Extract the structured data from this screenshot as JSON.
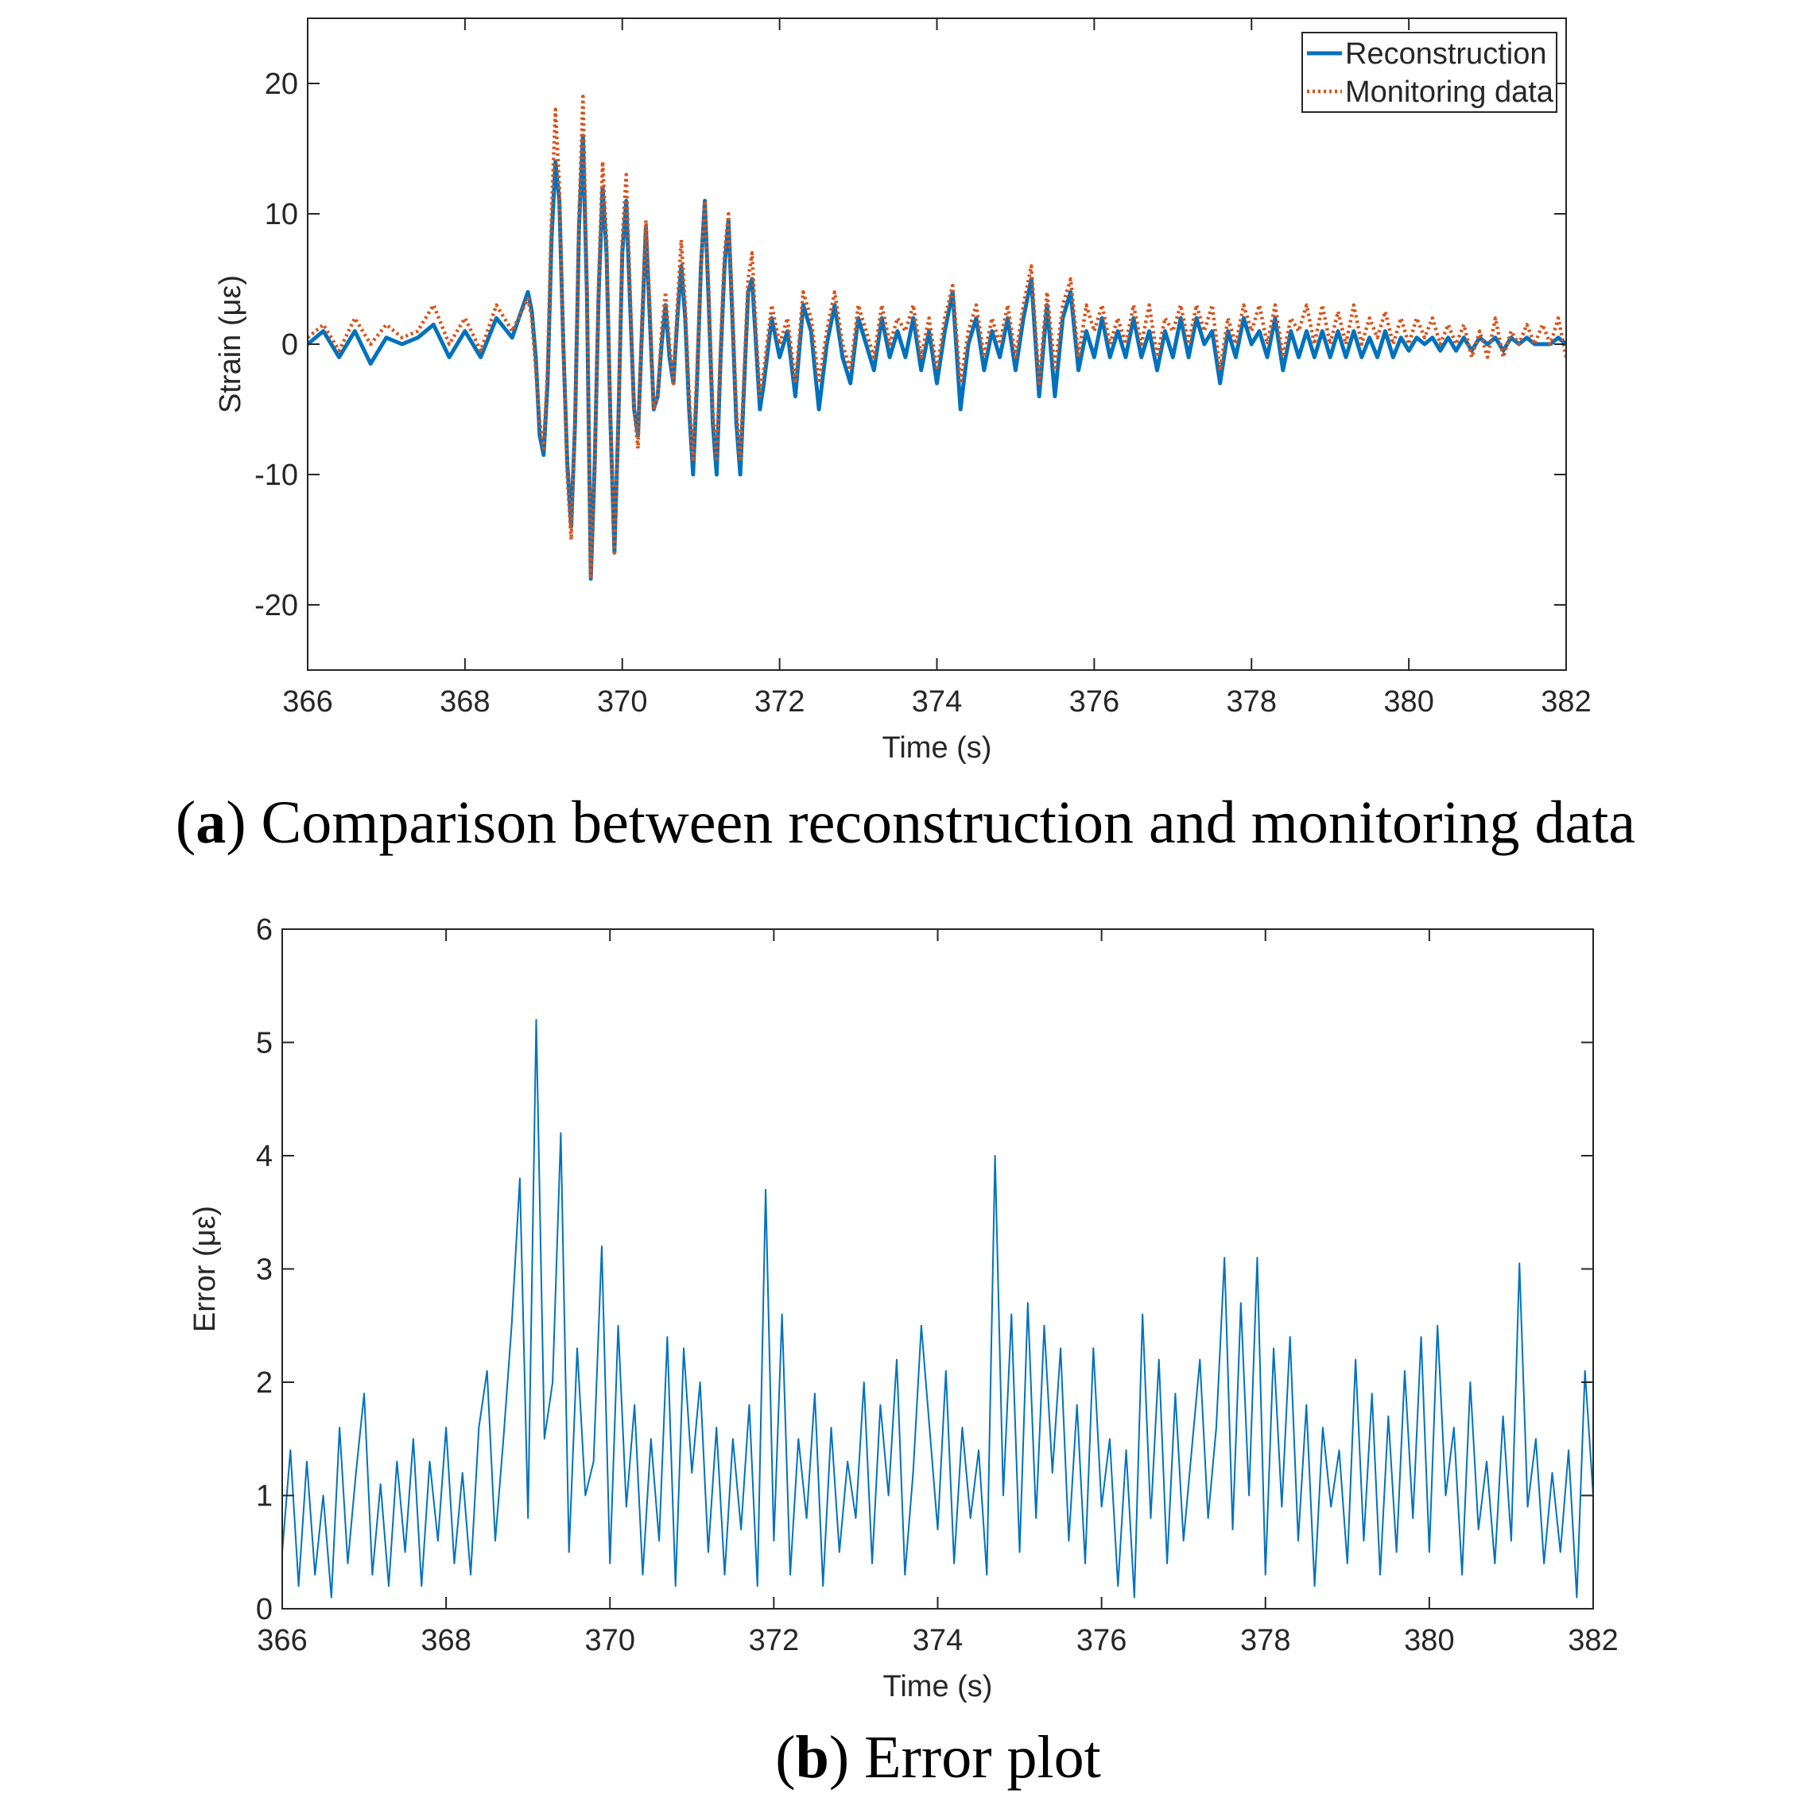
{
  "chart_data": [
    {
      "type": "line",
      "caption_label": "a",
      "caption": "Comparison between reconstruction and monitoring data",
      "xlabel": "Time (s)",
      "ylabel": "Strain (με)",
      "xlim": [
        366,
        382
      ],
      "xticks": [
        366,
        368,
        370,
        372,
        374,
        376,
        378,
        380,
        382
      ],
      "ylim": [
        -25,
        25
      ],
      "yticks": [
        -20,
        -10,
        0,
        10,
        20
      ],
      "legend": "upper right",
      "x": [
        366.0,
        366.2,
        366.4,
        366.6,
        366.8,
        367.0,
        367.2,
        367.4,
        367.6,
        367.8,
        368.0,
        368.2,
        368.4,
        368.6,
        368.8,
        368.85,
        368.9,
        368.95,
        369.0,
        369.05,
        369.1,
        369.15,
        369.2,
        369.25,
        369.3,
        369.35,
        369.4,
        369.45,
        369.5,
        369.55,
        369.6,
        369.65,
        369.7,
        369.75,
        369.8,
        369.85,
        369.9,
        369.95,
        370.0,
        370.05,
        370.1,
        370.15,
        370.2,
        370.25,
        370.3,
        370.35,
        370.4,
        370.45,
        370.5,
        370.55,
        370.6,
        370.65,
        370.7,
        370.75,
        370.8,
        370.85,
        370.9,
        370.95,
        371.0,
        371.05,
        371.1,
        371.15,
        371.2,
        371.25,
        371.3,
        371.35,
        371.4,
        371.45,
        371.5,
        371.55,
        371.6,
        371.65,
        371.7,
        371.75,
        371.8,
        371.9,
        372.0,
        372.1,
        372.2,
        372.3,
        372.4,
        372.5,
        372.6,
        372.7,
        372.8,
        372.9,
        373.0,
        373.1,
        373.2,
        373.3,
        373.4,
        373.5,
        373.6,
        373.7,
        373.8,
        373.9,
        374.0,
        374.1,
        374.2,
        374.3,
        374.4,
        374.5,
        374.6,
        374.7,
        374.8,
        374.9,
        375.0,
        375.1,
        375.2,
        375.3,
        375.4,
        375.5,
        375.6,
        375.7,
        375.8,
        375.9,
        376.0,
        376.1,
        376.2,
        376.3,
        376.4,
        376.5,
        376.6,
        376.7,
        376.8,
        376.9,
        377.0,
        377.1,
        377.2,
        377.3,
        377.4,
        377.5,
        377.6,
        377.7,
        377.8,
        377.9,
        378.0,
        378.1,
        378.2,
        378.3,
        378.4,
        378.5,
        378.6,
        378.7,
        378.8,
        378.9,
        379.0,
        379.1,
        379.2,
        379.3,
        379.4,
        379.5,
        379.6,
        379.7,
        379.8,
        379.9,
        380.0,
        380.1,
        380.2,
        380.3,
        380.4,
        380.5,
        380.6,
        380.7,
        380.8,
        380.9,
        381.0,
        381.1,
        381.2,
        381.3,
        381.4,
        381.5,
        381.6,
        381.7,
        381.8,
        381.9,
        382.0
      ],
      "series": [
        {
          "name": "Reconstruction",
          "color": "#0072bd",
          "style": "solid",
          "values": [
            0,
            1,
            -1,
            1,
            -1.5,
            0.5,
            0,
            0.5,
            1.5,
            -1,
            1,
            -1,
            2,
            0.5,
            4,
            2.5,
            -1,
            -7,
            -8.5,
            -3,
            8,
            14,
            11,
            0,
            -9,
            -14,
            -6,
            9,
            16,
            4,
            -18,
            -9,
            4,
            12,
            7,
            -6,
            -16,
            -6,
            7,
            11,
            3,
            -5,
            -7,
            1,
            9,
            2,
            -5,
            -4,
            0,
            3,
            -1,
            -3,
            2,
            6,
            2,
            -5,
            -10,
            -3,
            6,
            11,
            3,
            -6,
            -10,
            -1,
            6,
            9.5,
            2,
            -6,
            -10,
            -3,
            4,
            5,
            0,
            -5,
            -3,
            2,
            -1,
            1,
            -4,
            3,
            1,
            -5,
            0,
            3,
            -1,
            -3,
            2,
            0,
            -2,
            2,
            -1,
            1,
            -1,
            2,
            -2,
            1,
            -3,
            1,
            4,
            -5,
            0,
            2,
            -2,
            1,
            -1,
            2,
            -2,
            2,
            5,
            -4,
            3,
            -4,
            2,
            4,
            -2,
            1,
            -1,
            2,
            -1,
            1,
            -1,
            2,
            -1,
            1,
            -2,
            1,
            -1,
            2,
            -1,
            2,
            0,
            1,
            -3,
            1,
            -1,
            2,
            0,
            1,
            -1,
            2,
            -2,
            1,
            -1,
            1,
            -1,
            1,
            -1,
            1,
            -1,
            1,
            -1,
            0.5,
            -1,
            1,
            -1,
            0.5,
            -0.5,
            0.5,
            0,
            0.5,
            -0.5,
            0.5,
            -0.5,
            0.5,
            -0.5,
            0.5,
            0,
            0.5,
            -0.5,
            0.5,
            0,
            0.5,
            0,
            0,
            0,
            0.5,
            0
          ]
        },
        {
          "name": "Monitoring data",
          "color": "#d95319",
          "style": "dotted",
          "values": [
            0.5,
            1.5,
            -0.5,
            2,
            0,
            1.5,
            0.5,
            1,
            3,
            0,
            2,
            -0.5,
            3,
            1,
            3.5,
            2,
            -2,
            -6,
            -8,
            -2,
            10,
            18,
            12,
            0,
            -10,
            -15,
            -6,
            10,
            19,
            5,
            -18,
            -10,
            5,
            14,
            8,
            -6,
            -16,
            -6,
            8,
            13,
            4,
            -5,
            -8,
            2,
            9.5,
            3,
            -5,
            -4,
            1,
            4,
            0,
            -3,
            3,
            8,
            3,
            -4,
            -9,
            -2,
            6,
            11,
            4,
            -5,
            -9,
            0,
            7,
            10,
            3,
            -5,
            -9,
            -2,
            5,
            7,
            1,
            -4,
            -2,
            3,
            0,
            2,
            -3,
            4,
            2,
            -3,
            1,
            4,
            0,
            -2,
            3,
            1,
            -1,
            3,
            0,
            2,
            1,
            3,
            -1,
            2,
            -2,
            2,
            4.5,
            -3,
            1,
            3,
            -1,
            2,
            0,
            3,
            -1,
            3,
            6,
            -3,
            4,
            -2,
            3,
            5,
            -1,
            3,
            1,
            3,
            0,
            2,
            0,
            3,
            0,
            3,
            -1,
            2,
            1,
            3,
            0,
            3,
            1,
            3,
            -2,
            2,
            0,
            3,
            1,
            3,
            0,
            3,
            -1,
            2,
            1,
            3,
            0,
            3,
            0,
            2.5,
            0,
            3,
            0,
            2,
            0.5,
            2.5,
            0,
            2,
            0,
            2,
            0.5,
            2,
            0,
            1.5,
            0,
            1.5,
            -1,
            1,
            -1,
            2,
            -1,
            1,
            0,
            1.5,
            0,
            1.5,
            0,
            2,
            -1
          ]
        }
      ]
    },
    {
      "type": "line",
      "caption_label": "b",
      "caption": "Error plot",
      "xlabel": "Time (s)",
      "ylabel": "Error (με)",
      "xlim": [
        366,
        382
      ],
      "xticks": [
        366,
        368,
        370,
        372,
        374,
        376,
        378,
        380,
        382
      ],
      "ylim": [
        0,
        6
      ],
      "yticks": [
        0,
        1,
        2,
        3,
        4,
        5,
        6
      ],
      "x": [
        366.0,
        366.1,
        366.2,
        366.3,
        366.4,
        366.5,
        366.6,
        366.7,
        366.8,
        366.9,
        367.0,
        367.1,
        367.2,
        367.3,
        367.4,
        367.5,
        367.6,
        367.7,
        367.8,
        367.9,
        368.0,
        368.1,
        368.2,
        368.3,
        368.4,
        368.5,
        368.6,
        368.7,
        368.8,
        368.9,
        369.0,
        369.1,
        369.2,
        369.3,
        369.4,
        369.5,
        369.6,
        369.7,
        369.8,
        369.9,
        370.0,
        370.1,
        370.2,
        370.3,
        370.4,
        370.5,
        370.6,
        370.7,
        370.8,
        370.9,
        371.0,
        371.1,
        371.2,
        371.3,
        371.4,
        371.5,
        371.6,
        371.7,
        371.8,
        371.9,
        372.0,
        372.1,
        372.2,
        372.3,
        372.4,
        372.5,
        372.6,
        372.7,
        372.8,
        372.9,
        373.0,
        373.1,
        373.2,
        373.3,
        373.4,
        373.5,
        373.6,
        373.7,
        373.8,
        373.9,
        374.0,
        374.1,
        374.2,
        374.3,
        374.4,
        374.5,
        374.6,
        374.7,
        374.8,
        374.9,
        375.0,
        375.1,
        375.2,
        375.3,
        375.4,
        375.5,
        375.6,
        375.7,
        375.8,
        375.9,
        376.0,
        376.1,
        376.2,
        376.3,
        376.4,
        376.5,
        376.6,
        376.7,
        376.8,
        376.9,
        377.0,
        377.1,
        377.2,
        377.3,
        377.4,
        377.5,
        377.6,
        377.7,
        377.8,
        377.9,
        378.0,
        378.1,
        378.2,
        378.3,
        378.4,
        378.5,
        378.6,
        378.7,
        378.8,
        378.9,
        379.0,
        379.1,
        379.2,
        379.3,
        379.4,
        379.5,
        379.6,
        379.7,
        379.8,
        379.9,
        380.0,
        380.1,
        380.2,
        380.3,
        380.4,
        380.5,
        380.6,
        380.7,
        380.8,
        380.9,
        381.0,
        381.1,
        381.2,
        381.3,
        381.4,
        381.5,
        381.6,
        381.7,
        381.8,
        381.9,
        382.0
      ],
      "series": [
        {
          "color": "#0072bd",
          "style": "thin",
          "values": [
            0.5,
            1.4,
            0.2,
            1.3,
            0.3,
            1.0,
            0.1,
            1.6,
            0.4,
            1.2,
            1.9,
            0.3,
            1.1,
            0.2,
            1.3,
            0.5,
            1.5,
            0.2,
            1.3,
            0.6,
            1.6,
            0.4,
            1.2,
            0.3,
            1.6,
            2.1,
            0.6,
            1.5,
            2.5,
            3.8,
            0.8,
            5.2,
            1.5,
            2.0,
            4.2,
            0.5,
            2.3,
            1.0,
            1.3,
            3.2,
            0.4,
            2.5,
            0.9,
            1.8,
            0.3,
            1.5,
            0.6,
            2.4,
            0.2,
            2.3,
            1.2,
            2.0,
            0.5,
            1.6,
            0.3,
            1.5,
            0.7,
            1.8,
            0.2,
            3.7,
            0.6,
            2.6,
            0.3,
            1.5,
            0.8,
            1.9,
            0.2,
            1.6,
            0.5,
            1.3,
            0.8,
            2.0,
            0.4,
            1.8,
            1.0,
            2.2,
            0.3,
            1.2,
            2.5,
            1.6,
            0.7,
            2.1,
            0.4,
            1.6,
            0.8,
            1.4,
            0.3,
            4.0,
            1.0,
            2.6,
            0.5,
            2.7,
            0.8,
            2.5,
            1.2,
            2.3,
            0.6,
            1.8,
            0.4,
            2.3,
            0.9,
            1.5,
            0.2,
            1.4,
            0.1,
            2.6,
            0.8,
            2.2,
            0.4,
            1.9,
            0.6,
            1.4,
            2.2,
            0.8,
            1.6,
            3.1,
            0.7,
            2.7,
            1.0,
            3.1,
            0.3,
            2.3,
            0.9,
            2.4,
            0.6,
            1.8,
            0.2,
            1.6,
            0.9,
            1.4,
            0.4,
            2.2,
            0.6,
            1.9,
            0.3,
            1.7,
            0.5,
            2.1,
            0.8,
            2.4,
            0.5,
            2.5,
            1.0,
            1.6,
            0.3,
            2.0,
            0.7,
            1.3,
            0.4,
            1.7,
            0.6,
            3.05,
            0.9,
            1.5,
            0.4,
            1.2,
            0.5,
            1.4,
            0.1,
            2.1,
            1.0
          ]
        }
      ]
    }
  ]
}
